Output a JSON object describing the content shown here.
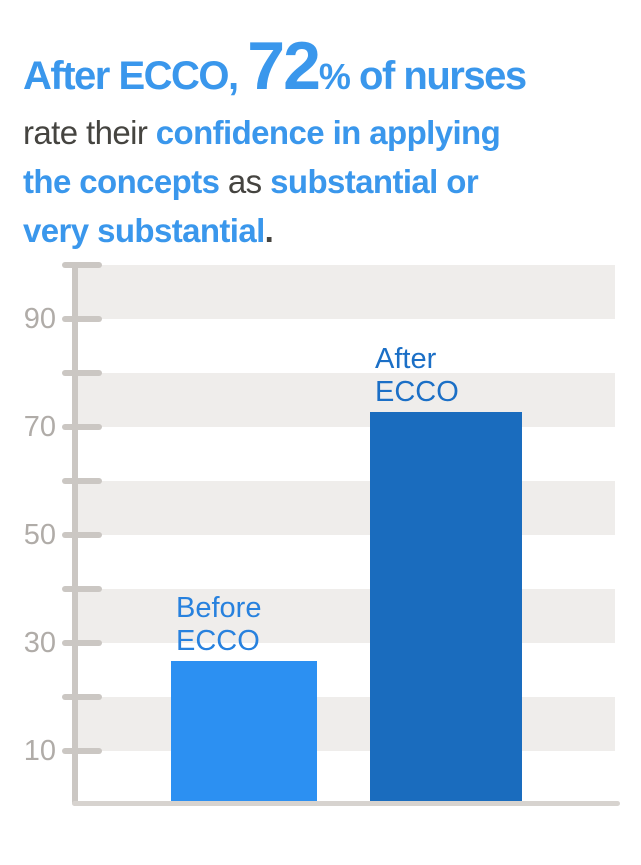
{
  "headline": {
    "blue_color": "#3A97EC",
    "dark_color": "#454440",
    "line1": {
      "blue_prefix": "After ECCO, ",
      "big_number": "72",
      "percent_sign": "%",
      "blue_suffix": " of nurses"
    },
    "line2": {
      "gray_text": "rate their ",
      "blue_text": "confidence in applying"
    },
    "line3": {
      "blue_text_1": "the concepts",
      "gray_text": " as ",
      "blue_text_2": "substantial or"
    },
    "line4": {
      "blue_text": "very substantial",
      "gray_period": "."
    }
  },
  "chart_data": {
    "type": "bar",
    "title": "",
    "xlabel": "",
    "ylabel": "",
    "categories": [
      "Before ECCO",
      "After ECCO"
    ],
    "values": [
      26,
      72
    ],
    "unit": "percent of nurses",
    "ylim": [
      0,
      100
    ],
    "yticks_all": [
      10,
      20,
      30,
      40,
      50,
      60,
      70,
      80,
      90,
      100
    ],
    "ytick_labels": [
      90,
      70,
      50,
      30,
      10
    ],
    "stripe_bands": [
      [
        10,
        20
      ],
      [
        30,
        40
      ],
      [
        50,
        60
      ],
      [
        70,
        80
      ],
      [
        90,
        100
      ]
    ],
    "grid": "striped horizontal bands, no vertical gridlines",
    "legend": "none",
    "bar_labels": [
      "Before\nECCO",
      "After\nECCO"
    ],
    "bar_colors": [
      "#2C90F2",
      "#1A6CBE"
    ],
    "bar_label_colors": [
      "#2781DE",
      "#1B6FC6"
    ],
    "axis_color": "#CBC7C3",
    "baseline_color": "#D7D3CF",
    "band_color": "#EFEDEB",
    "tick_label_color": "#B0ACA8"
  }
}
